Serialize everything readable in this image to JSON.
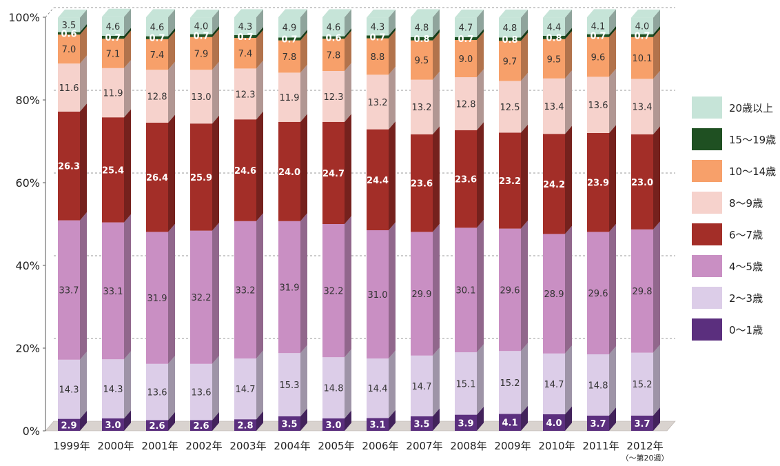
{
  "chart_data": {
    "type": "bar",
    "stacked": true,
    "percent": true,
    "title": "",
    "xlabel": "",
    "ylabel": "",
    "ylim": [
      0,
      100
    ],
    "y_ticks": [
      "0%",
      "20%",
      "40%",
      "60%",
      "80%",
      "100%"
    ],
    "grid": true,
    "legend_position": "right",
    "categories": [
      "1999年",
      "2000年",
      "2001年",
      "2002年",
      "2003年",
      "2004年",
      "2005年",
      "2006年",
      "2007年",
      "2008年",
      "2009年",
      "2010年",
      "2011年",
      "2012年"
    ],
    "category_notes": [
      "",
      "",
      "",
      "",
      "",
      "",
      "",
      "",
      "",
      "",
      "",
      "",
      "",
      "（～第20週）"
    ],
    "series": [
      {
        "name": "0～1歳",
        "color": "#5b2f7e",
        "label_color": "#ffffff",
        "values": [
          2.9,
          3.0,
          2.6,
          2.6,
          2.8,
          3.5,
          3.0,
          3.1,
          3.5,
          3.9,
          4.1,
          4.0,
          3.7,
          3.7
        ]
      },
      {
        "name": "2～3歳",
        "color": "#dccde8",
        "label_color": "#333333",
        "values": [
          14.3,
          14.3,
          13.6,
          13.6,
          14.7,
          15.3,
          14.8,
          14.4,
          14.7,
          15.1,
          15.2,
          14.7,
          14.8,
          15.2
        ]
      },
      {
        "name": "4～5歳",
        "color": "#c98fc3",
        "label_color": "#333333",
        "values": [
          33.7,
          33.1,
          31.9,
          32.2,
          33.2,
          31.9,
          32.2,
          31.0,
          29.9,
          30.1,
          29.6,
          28.9,
          29.6,
          29.8
        ]
      },
      {
        "name": "6～7歳",
        "color": "#a32e28",
        "label_color": "#ffffff",
        "values": [
          26.3,
          25.4,
          26.4,
          25.9,
          24.6,
          24.0,
          24.7,
          24.4,
          23.6,
          23.6,
          23.2,
          24.2,
          23.9,
          23.0
        ]
      },
      {
        "name": "8～9歳",
        "color": "#f6d2cc",
        "label_color": "#333333",
        "values": [
          11.6,
          11.9,
          12.8,
          13.0,
          12.3,
          11.9,
          12.3,
          13.2,
          13.2,
          12.8,
          12.5,
          13.4,
          13.6,
          13.4
        ]
      },
      {
        "name": "10～14歳",
        "color": "#f7a06a",
        "label_color": "#333333",
        "values": [
          7.0,
          7.1,
          7.4,
          7.9,
          7.4,
          7.8,
          7.8,
          8.8,
          9.5,
          9.0,
          9.7,
          9.5,
          9.6,
          10.1
        ]
      },
      {
        "name": "15～19歳",
        "color": "#1f5022",
        "label_color": "#ffffff",
        "values": [
          0.6,
          0.7,
          0.7,
          0.7,
          0.7,
          0.7,
          0.6,
          0.7,
          0.8,
          0.7,
          0.8,
          0.8,
          0.7,
          0.7
        ]
      },
      {
        "name": "20歳以上",
        "color": "#c6e4d8",
        "label_color": "#333333",
        "values": [
          3.5,
          4.6,
          4.6,
          4.0,
          4.3,
          4.9,
          4.6,
          4.3,
          4.8,
          4.7,
          4.8,
          4.4,
          4.1,
          4.0
        ]
      }
    ]
  }
}
